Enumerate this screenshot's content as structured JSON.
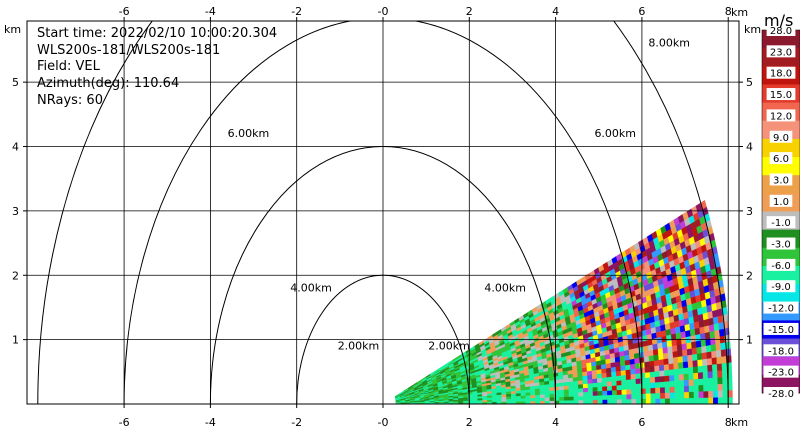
{
  "info": {
    "start_time": "Start time: 2022/02/10 10:00:20.304",
    "instrument": "WLS200s-181/WLS200s-181",
    "field": "Field: VEL",
    "azimuth": "Azimuth(deg): 110.64",
    "nrays": "NRays: 60"
  },
  "colorbar": {
    "unit": "m/s",
    "ticks": [
      "28.0",
      "23.0",
      "18.0",
      "15.0",
      "12.0",
      "9.0",
      "6.0",
      "3.0",
      "1.0",
      "-1.0",
      "-3.0",
      "-6.0",
      "-9.0",
      "-12.0",
      "-15.0",
      "-18.0",
      "-23.0",
      "-28.0"
    ],
    "colors": [
      "#8b1a2e",
      "#a31c22",
      "#c0140e",
      "#e23a2b",
      "#f0664e",
      "#f4937a",
      "#f7d100",
      "#fffd00",
      "#eda04a",
      "#f09d55",
      "#bdbdbd",
      "#1f8f1f",
      "#2fc43a",
      "#19f0a0",
      "#07e6e6",
      "#3399ff",
      "#0000ee",
      "#6a4fd8",
      "#c13dd6",
      "#8c1460"
    ]
  },
  "chart_data": {
    "type": "heatmap",
    "title": "",
    "xlabel": "km",
    "ylabel": "km",
    "xlim": [
      -8.25,
      8.25
    ],
    "ylim": [
      0,
      5.95
    ],
    "x_ticks": [
      "-6",
      "-4",
      "-2",
      "-0",
      "2",
      "4",
      "6",
      "8"
    ],
    "x_tick_values": [
      -6,
      -4,
      -2,
      0,
      2,
      4,
      6,
      8
    ],
    "y_ticks": [
      "1",
      "2",
      "3",
      "4",
      "5"
    ],
    "y_tick_values": [
      1,
      2,
      3,
      4,
      5
    ],
    "x_unit_label": "km",
    "y_unit_label": "km",
    "range_rings": [
      {
        "radius_km": 2,
        "label": "2.00km"
      },
      {
        "radius_km": 4,
        "label": "4.00km"
      },
      {
        "radius_km": 6,
        "label": "6.00km"
      },
      {
        "radius_km": 8,
        "label": "8.00km"
      }
    ],
    "ppi_sector": {
      "azimuth_range_deg": [
        67,
        90
      ],
      "range_km": [
        0.3,
        8.1
      ],
      "field": "VEL",
      "units": "m/s"
    },
    "grid": true
  }
}
